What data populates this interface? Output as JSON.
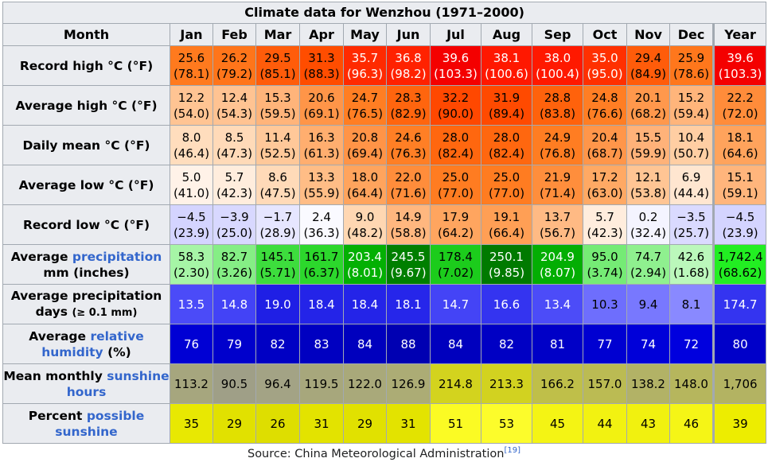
{
  "caption": "Climate data for Wenzhou (1971–2000)",
  "header": {
    "label": "Month",
    "months": [
      "Jan",
      "Feb",
      "Mar",
      "Apr",
      "May",
      "Jun",
      "Jul",
      "Aug",
      "Sep",
      "Oct",
      "Nov",
      "Dec"
    ],
    "year": "Year"
  },
  "rows": {
    "record_high": {
      "label": "Record high °C (°F)",
      "cells": [
        {
          "c": "25.6",
          "f": "(78.1)",
          "bg": "#ff7a1e"
        },
        {
          "c": "26.2",
          "f": "(79.2)",
          "bg": "#ff751a"
        },
        {
          "c": "29.5",
          "f": "(85.1)",
          "bg": "#ff5c0a"
        },
        {
          "c": "31.3",
          "f": "(88.3)",
          "bg": "#ff4d00"
        },
        {
          "c": "35.7",
          "f": "(96.3)",
          "bg": "#ff2a00"
        },
        {
          "c": "36.8",
          "f": "(98.2)",
          "bg": "#ff2200"
        },
        {
          "c": "39.6",
          "f": "(103.3)",
          "bg": "#f40000"
        },
        {
          "c": "38.1",
          "f": "(100.6)",
          "bg": "#ff1800"
        },
        {
          "c": "38.0",
          "f": "(100.4)",
          "bg": "#ff1900"
        },
        {
          "c": "35.0",
          "f": "(95.0)",
          "bg": "#ff3000"
        },
        {
          "c": "29.4",
          "f": "(84.9)",
          "bg": "#ff5c0a"
        },
        {
          "c": "25.9",
          "f": "(78.6)",
          "bg": "#ff771c"
        },
        {
          "c": "39.6",
          "f": "(103.3)",
          "bg": "#f40000"
        }
      ]
    },
    "avg_high": {
      "label": "Average high °C (°F)",
      "cells": [
        {
          "c": "12.2",
          "f": "(54.0)",
          "bg": "#ffc493"
        },
        {
          "c": "12.4",
          "f": "(54.3)",
          "bg": "#ffc392"
        },
        {
          "c": "15.3",
          "f": "(59.5)",
          "bg": "#ffb47a"
        },
        {
          "c": "20.6",
          "f": "(69.1)",
          "bg": "#ff9548"
        },
        {
          "c": "24.7",
          "f": "(76.5)",
          "bg": "#ff7e23"
        },
        {
          "c": "28.3",
          "f": "(82.9)",
          "bg": "#ff650e"
        },
        {
          "c": "32.2",
          "f": "(90.0)",
          "bg": "#ff4800"
        },
        {
          "c": "31.9",
          "f": "(89.4)",
          "bg": "#ff4a00"
        },
        {
          "c": "28.8",
          "f": "(83.8)",
          "bg": "#ff620c"
        },
        {
          "c": "24.8",
          "f": "(76.6)",
          "bg": "#ff7e24"
        },
        {
          "c": "20.1",
          "f": "(68.2)",
          "bg": "#ff984c"
        },
        {
          "c": "15.2",
          "f": "(59.4)",
          "bg": "#ffb57b"
        },
        {
          "c": "22.2",
          "f": "(72.0)",
          "bg": "#ff8c3a"
        }
      ]
    },
    "daily_mean": {
      "label": "Daily mean °C (°F)",
      "cells": [
        {
          "c": "8.0",
          "f": "(46.4)",
          "bg": "#ffddbd"
        },
        {
          "c": "8.5",
          "f": "(47.3)",
          "bg": "#ffdab8"
        },
        {
          "c": "11.4",
          "f": "(52.5)",
          "bg": "#ffc899"
        },
        {
          "c": "16.3",
          "f": "(61.3)",
          "bg": "#ffae6f"
        },
        {
          "c": "20.8",
          "f": "(69.4)",
          "bg": "#ff9447"
        },
        {
          "c": "24.6",
          "f": "(76.3)",
          "bg": "#ff7f25"
        },
        {
          "c": "28.0",
          "f": "(82.4)",
          "bg": "#ff670f"
        },
        {
          "c": "28.0",
          "f": "(82.4)",
          "bg": "#ff670f"
        },
        {
          "c": "24.9",
          "f": "(76.8)",
          "bg": "#ff7d22"
        },
        {
          "c": "20.4",
          "f": "(68.7)",
          "bg": "#ff964a"
        },
        {
          "c": "15.5",
          "f": "(59.9)",
          "bg": "#ffb279"
        },
        {
          "c": "10.4",
          "f": "(50.7)",
          "bg": "#ffcea3"
        },
        {
          "c": "18.1",
          "f": "(64.6)",
          "bg": "#ffa35c"
        }
      ]
    },
    "avg_low": {
      "label": "Average low °C (°F)",
      "cells": [
        {
          "c": "5.0",
          "f": "(41.0)",
          "bg": "#fff2e8"
        },
        {
          "c": "5.7",
          "f": "(42.3)",
          "bg": "#ffeddd"
        },
        {
          "c": "8.6",
          "f": "(47.5)",
          "bg": "#ffdab8"
        },
        {
          "c": "13.3",
          "f": "(55.9)",
          "bg": "#ffbd86"
        },
        {
          "c": "18.0",
          "f": "(64.4)",
          "bg": "#ffa45d"
        },
        {
          "c": "22.0",
          "f": "(71.6)",
          "bg": "#ff8d3b"
        },
        {
          "c": "25.0",
          "f": "(77.0)",
          "bg": "#ff7c21"
        },
        {
          "c": "25.0",
          "f": "(77.0)",
          "bg": "#ff7c21"
        },
        {
          "c": "21.9",
          "f": "(71.4)",
          "bg": "#ff8e3c"
        },
        {
          "c": "17.2",
          "f": "(63.0)",
          "bg": "#ffa964"
        },
        {
          "c": "12.1",
          "f": "(53.8)",
          "bg": "#ffc594"
        },
        {
          "c": "6.9",
          "f": "(44.4)",
          "bg": "#ffe6d0"
        },
        {
          "c": "15.1",
          "f": "(59.1)",
          "bg": "#ffb57c"
        }
      ]
    },
    "record_low": {
      "label": "Record low °C (°F)",
      "cells": [
        {
          "c": "−4.5",
          "f": "(23.9)",
          "bg": "#d4d4ff"
        },
        {
          "c": "−3.9",
          "f": "(25.0)",
          "bg": "#d8d8ff"
        },
        {
          "c": "−1.7",
          "f": "(28.9)",
          "bg": "#e6e6ff"
        },
        {
          "c": "2.4",
          "f": "(36.3)",
          "bg": "#fafaff"
        },
        {
          "c": "9.0",
          "f": "(48.2)",
          "bg": "#ffd7b2"
        },
        {
          "c": "14.9",
          "f": "(58.8)",
          "bg": "#ffb77f"
        },
        {
          "c": "17.9",
          "f": "(64.2)",
          "bg": "#ffa55f"
        },
        {
          "c": "19.1",
          "f": "(66.4)",
          "bg": "#ff9f55"
        },
        {
          "c": "13.7",
          "f": "(56.7)",
          "bg": "#ffba84"
        },
        {
          "c": "5.7",
          "f": "(42.3)",
          "bg": "#ffeddd"
        },
        {
          "c": "0.2",
          "f": "(32.4)",
          "bg": "#f4f4ff"
        },
        {
          "c": "−3.5",
          "f": "(25.7)",
          "bg": "#dadaff"
        },
        {
          "c": "−4.5",
          "f": "(23.9)",
          "bg": "#d4d4ff"
        }
      ]
    },
    "precip_mm": {
      "label_plain1": "Average ",
      "label_link": "precipitation",
      "label_plain2": "mm (inches)",
      "cells": [
        {
          "c": "58.3",
          "f": "(2.30)",
          "bg": "#a6f5a6",
          "dark": false
        },
        {
          "c": "82.7",
          "f": "(3.26)",
          "bg": "#85ee85",
          "dark": false
        },
        {
          "c": "145.1",
          "f": "(5.71)",
          "bg": "#3ddd3d",
          "dark": false
        },
        {
          "c": "161.7",
          "f": "(6.37)",
          "bg": "#2cd72c",
          "dark": false
        },
        {
          "c": "203.4",
          "f": "(8.01)",
          "bg": "#03b003",
          "dark": false
        },
        {
          "c": "245.5",
          "f": "(9.67)",
          "bg": "#007f00",
          "dark": true
        },
        {
          "c": "178.4",
          "f": "(7.02)",
          "bg": "#1ccc1c",
          "dark": false
        },
        {
          "c": "250.1",
          "f": "(9.85)",
          "bg": "#007a00",
          "dark": true
        },
        {
          "c": "204.9",
          "f": "(8.07)",
          "bg": "#03ae03",
          "dark": true
        },
        {
          "c": "95.0",
          "f": "(3.74)",
          "bg": "#75eb75",
          "dark": false
        },
        {
          "c": "74.7",
          "f": "(2.94)",
          "bg": "#8ff08f",
          "dark": false
        },
        {
          "c": "42.6",
          "f": "(1.68)",
          "bg": "#bbf8bb",
          "dark": false
        },
        {
          "c": "1,742.4",
          "f": "(68.62)",
          "bg": "#22ee22",
          "dark": false
        }
      ]
    },
    "precip_days": {
      "label_line1": "Average precipitation",
      "label_line2": "days",
      "label_small": "(≥ 0.1 mm)",
      "cells": [
        {
          "v": "13.5",
          "bg": "#4b4bf8",
          "dark": true
        },
        {
          "v": "14.8",
          "bg": "#4343f6",
          "dark": true
        },
        {
          "v": "19.0",
          "bg": "#1f1fe5",
          "dark": true
        },
        {
          "v": "18.4",
          "bg": "#2424e8",
          "dark": true
        },
        {
          "v": "18.4",
          "bg": "#2424e8",
          "dark": true
        },
        {
          "v": "18.1",
          "bg": "#2626ea",
          "dark": true
        },
        {
          "v": "14.7",
          "bg": "#4444f6",
          "dark": true
        },
        {
          "v": "16.6",
          "bg": "#3434f0",
          "dark": true
        },
        {
          "v": "13.4",
          "bg": "#4c4cf8",
          "dark": true
        },
        {
          "v": "10.3",
          "bg": "#6e6efd",
          "dark": false
        },
        {
          "v": "9.4",
          "bg": "#7878fe",
          "dark": false
        },
        {
          "v": "8.1",
          "bg": "#8989ff",
          "dark": false
        },
        {
          "v": "174.7",
          "bg": "#3434f0",
          "dark": true
        }
      ]
    },
    "humidity": {
      "label_plain1": "Average ",
      "label_link": "relative humidity",
      "label_plain2": " (%)",
      "cells": [
        {
          "v": "76",
          "bg": "#0000d4"
        },
        {
          "v": "79",
          "bg": "#0000cc"
        },
        {
          "v": "82",
          "bg": "#0000c4"
        },
        {
          "v": "83",
          "bg": "#0000c1"
        },
        {
          "v": "84",
          "bg": "#0000be"
        },
        {
          "v": "88",
          "bg": "#0000b2"
        },
        {
          "v": "84",
          "bg": "#0000be"
        },
        {
          "v": "82",
          "bg": "#0000c4"
        },
        {
          "v": "81",
          "bg": "#0000c7"
        },
        {
          "v": "77",
          "bg": "#0000d1"
        },
        {
          "v": "74",
          "bg": "#0000d9"
        },
        {
          "v": "72",
          "bg": "#0000de"
        },
        {
          "v": "80",
          "bg": "#0000c9"
        }
      ]
    },
    "sunshine_hours": {
      "label_plain1": "Mean monthly ",
      "label_link": "sunshine hours",
      "cells": [
        {
          "v": "113.2",
          "bg": "#a6a67e"
        },
        {
          "v": "90.5",
          "bg": "#9f9f87"
        },
        {
          "v": "96.4",
          "bg": "#a3a385"
        },
        {
          "v": "119.5",
          "bg": "#a7a77c"
        },
        {
          "v": "122.0",
          "bg": "#a9a97a"
        },
        {
          "v": "126.9",
          "bg": "#acac75"
        },
        {
          "v": "214.8",
          "bg": "#d3d31e"
        },
        {
          "v": "213.3",
          "bg": "#d2d220"
        },
        {
          "v": "166.2",
          "bg": "#bfbf49"
        },
        {
          "v": "157.0",
          "bg": "#bbbb53"
        },
        {
          "v": "138.2",
          "bg": "#b2b266"
        },
        {
          "v": "148.0",
          "bg": "#b6b65d"
        },
        {
          "v": "1,706",
          "bg": "#b3b362"
        }
      ]
    },
    "sunshine_pct": {
      "label_plain1": "Percent ",
      "label_link": "possible sunshine",
      "cells": [
        {
          "v": "35",
          "bg": "#e8e802"
        },
        {
          "v": "29",
          "bg": "#e1e100"
        },
        {
          "v": "26",
          "bg": "#dede00"
        },
        {
          "v": "31",
          "bg": "#e3e300"
        },
        {
          "v": "29",
          "bg": "#e1e100"
        },
        {
          "v": "31",
          "bg": "#e3e300"
        },
        {
          "v": "51",
          "bg": "#fbfb24"
        },
        {
          "v": "53",
          "bg": "#fcfc2b"
        },
        {
          "v": "45",
          "bg": "#f4f414"
        },
        {
          "v": "44",
          "bg": "#f2f211"
        },
        {
          "v": "43",
          "bg": "#f1f10f"
        },
        {
          "v": "46",
          "bg": "#f5f516"
        },
        {
          "v": "39",
          "bg": "#ececec00"
        }
      ]
    }
  },
  "source": {
    "text": "Source: China Meteorological Administration",
    "ref": "[19]"
  }
}
